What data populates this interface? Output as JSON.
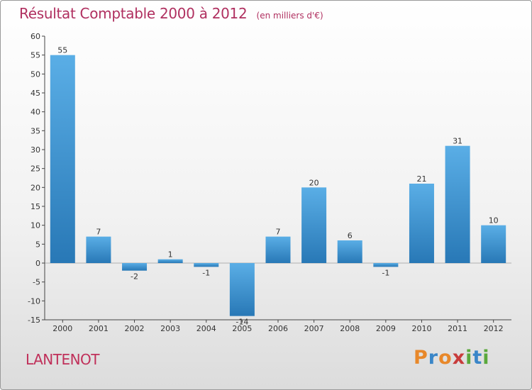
{
  "chart_data": {
    "type": "bar",
    "title": "Résultat Comptable 2000 à 2012",
    "subtitle": "(en milliers d'€)",
    "categories": [
      "2000",
      "2001",
      "2002",
      "2003",
      "2004",
      "2005",
      "2006",
      "2007",
      "2008",
      "2009",
      "2010",
      "2011",
      "2012"
    ],
    "values": [
      55,
      7,
      -2,
      1,
      -1,
      -14,
      7,
      20,
      6,
      -1,
      21,
      31,
      10
    ],
    "value_labels": [
      "55",
      "7",
      "-2",
      "1",
      "-1",
      "-14",
      "7",
      "20",
      "6",
      "-1",
      "21",
      "31",
      "10"
    ],
    "ylim": [
      -15,
      60
    ],
    "yticks": [
      -15,
      -10,
      -5,
      0,
      5,
      10,
      15,
      20,
      25,
      30,
      35,
      40,
      45,
      50,
      55,
      60
    ],
    "ytick_labels": [
      "-15",
      "-10",
      "-5",
      "0",
      "5",
      "10",
      "15",
      "20",
      "25",
      "30",
      "35",
      "40",
      "45",
      "50",
      "55",
      "60"
    ],
    "xlabel": "",
    "ylabel": "",
    "grid": false,
    "bar_color_light": "#5aaee6",
    "bar_color_dark": "#2878b6"
  },
  "header": {
    "title": "Résultat Comptable 2000 à 2012",
    "subtitle": "(en milliers d'€)"
  },
  "footer": {
    "commune": "LANTENOT",
    "logo_letters": [
      {
        "ch": "P",
        "color": "#e8882a"
      },
      {
        "ch": "r",
        "color": "#3a86c8"
      },
      {
        "ch": "o",
        "color": "#e8882a"
      },
      {
        "ch": "x",
        "color": "#c83c3c"
      },
      {
        "ch": "i",
        "color": "#5aa83c"
      },
      {
        "ch": "t",
        "color": "#3a86c8"
      },
      {
        "ch": "i",
        "color": "#5aa83c"
      }
    ]
  },
  "colors": {
    "title": "#b03060",
    "commune": "#c0305a"
  }
}
